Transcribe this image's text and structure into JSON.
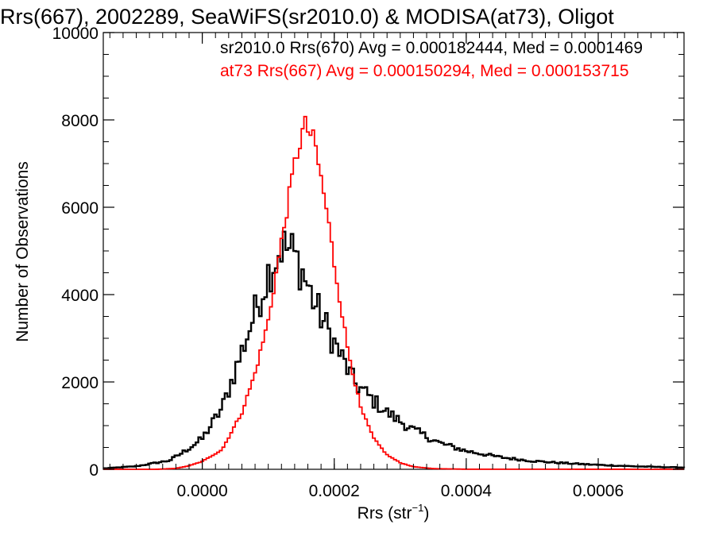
{
  "chart_data": {
    "type": "histogram",
    "title": "Rrs(667), 2002289, SeaWiFS(sr2010.0) & MODISA(at73), Oligot",
    "xlabel_main": "Rrs (str",
    "xlabel_sup": "−1",
    "xlabel_close": ")",
    "ylabel": "Number of Observations",
    "xlim": [
      -0.00015,
      0.00073
    ],
    "ylim": [
      0,
      10000
    ],
    "xticks": [
      {
        "value": 0.0,
        "label": "0.0000"
      },
      {
        "value": 0.0002,
        "label": "0.0002"
      },
      {
        "value": 0.0004,
        "label": "0.0004"
      },
      {
        "value": 0.0006,
        "label": "0.0006"
      }
    ],
    "yticks": [
      {
        "value": 0,
        "label": "0"
      },
      {
        "value": 2000,
        "label": "2000"
      },
      {
        "value": 4000,
        "label": "4000"
      },
      {
        "value": 6000,
        "label": "6000"
      },
      {
        "value": 8000,
        "label": "8000"
      },
      {
        "value": 10000,
        "label": "10000"
      }
    ],
    "bin_width": 4e-06,
    "legend": [
      {
        "text": "sr2010.0 Rrs(670) Avg = 0.000182444, Med = 0.0001469",
        "color": "#000000"
      },
      {
        "text": "at73 Rrs(667) Avg = 0.000150294, Med = 0.000153715",
        "color": "#ff0000"
      }
    ],
    "series": [
      {
        "color": "#000000",
        "anchors": [
          [
            -0.00015,
            20
          ],
          [
            -0.0001,
            70
          ],
          [
            -5e-05,
            200
          ],
          [
            -3e-05,
            380
          ],
          [
            0.0,
            700
          ],
          [
            3e-05,
            1400
          ],
          [
            6e-05,
            2700
          ],
          [
            8e-05,
            3600
          ],
          [
            0.0001,
            4500
          ],
          [
            0.00012,
            5100
          ],
          [
            0.000135,
            5000
          ],
          [
            0.00015,
            4600
          ],
          [
            0.00017,
            3800
          ],
          [
            0.00019,
            3200
          ],
          [
            0.00021,
            2600
          ],
          [
            0.00023,
            2000
          ],
          [
            0.00025,
            1700
          ],
          [
            0.00028,
            1300
          ],
          [
            0.00032,
            900
          ],
          [
            0.00036,
            600
          ],
          [
            0.0004,
            420
          ],
          [
            0.00045,
            280
          ],
          [
            0.0005,
            190
          ],
          [
            0.00055,
            140
          ],
          [
            0.0006,
            100
          ],
          [
            0.00065,
            70
          ],
          [
            0.0007,
            50
          ],
          [
            0.00073,
            40
          ]
        ],
        "jitter": 0.12
      },
      {
        "color": "#ff0000",
        "anchors": [
          [
            -0.00015,
            0
          ],
          [
            -7e-05,
            0
          ],
          [
            -4e-05,
            20
          ],
          [
            -2e-05,
            80
          ],
          [
            0.0,
            180
          ],
          [
            3e-05,
            450
          ],
          [
            6e-05,
            1300
          ],
          [
            8e-05,
            2200
          ],
          [
            0.0001,
            3400
          ],
          [
            0.00012,
            5200
          ],
          [
            0.00014,
            7000
          ],
          [
            0.000155,
            7900
          ],
          [
            0.00017,
            7500
          ],
          [
            0.00019,
            5800
          ],
          [
            0.0002,
            4700
          ],
          [
            0.00022,
            2800
          ],
          [
            0.00024,
            1400
          ],
          [
            0.00026,
            700
          ],
          [
            0.00028,
            330
          ],
          [
            0.0003,
            150
          ],
          [
            0.00032,
            60
          ],
          [
            0.00035,
            15
          ],
          [
            0.0004,
            3
          ],
          [
            0.00073,
            0
          ]
        ],
        "jitter": 0.03
      }
    ]
  }
}
